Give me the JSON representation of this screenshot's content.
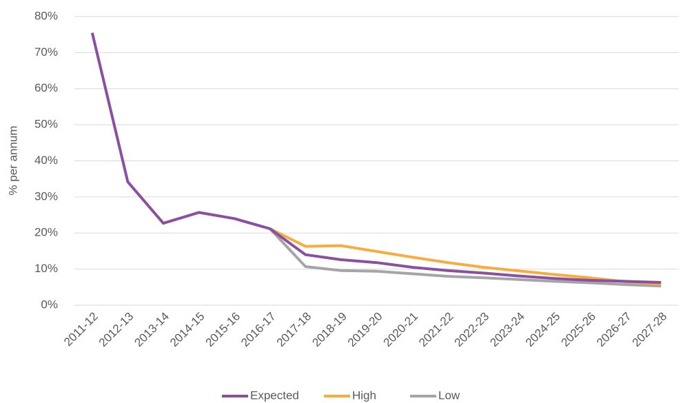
{
  "chart_data": {
    "type": "line",
    "y_label": "% per annum",
    "categories": [
      "2011-12",
      "2012-13",
      "2013-14",
      "2014-15",
      "2015-16",
      "2016-17",
      "2017-18",
      "2018-19",
      "2019-20",
      "2020-21",
      "2021-22",
      "2022-23",
      "2023-24",
      "2024-25",
      "2025-26",
      "2026-27",
      "2027-28"
    ],
    "series": [
      {
        "name": "Expected",
        "color": "#8b4fa1",
        "values": [
          75.5,
          34.2,
          22.7,
          25.7,
          24.0,
          21.2,
          14.0,
          12.6,
          11.8,
          10.5,
          9.6,
          8.9,
          8.1,
          7.4,
          6.9,
          6.6,
          6.3
        ]
      },
      {
        "name": "High",
        "color": "#f8ac3c",
        "values": [
          null,
          null,
          null,
          null,
          null,
          21.2,
          16.3,
          16.5,
          14.9,
          13.3,
          11.8,
          10.5,
          9.5,
          8.5,
          7.6,
          6.5,
          5.9
        ]
      },
      {
        "name": "Low",
        "color": "#a5a5a5",
        "values": [
          null,
          null,
          null,
          null,
          null,
          21.2,
          10.7,
          9.6,
          9.4,
          8.7,
          8.0,
          7.6,
          7.1,
          6.6,
          6.2,
          5.7,
          5.3
        ]
      }
    ],
    "ylim": [
      0,
      80
    ],
    "yticks": [
      {
        "value": 0,
        "label": "0%"
      },
      {
        "value": 10,
        "label": "10%"
      },
      {
        "value": 20,
        "label": "20%"
      },
      {
        "value": 30,
        "label": "30%"
      },
      {
        "value": 40,
        "label": "40%"
      },
      {
        "value": 50,
        "label": "50%"
      },
      {
        "value": 60,
        "label": "60%"
      },
      {
        "value": 70,
        "label": "70%"
      },
      {
        "value": 80,
        "label": "80%"
      }
    ],
    "grid": true,
    "legend": "bottom"
  }
}
